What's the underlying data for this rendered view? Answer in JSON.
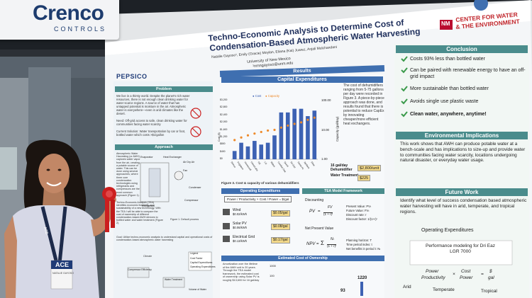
{
  "sign": {
    "brand": "Crenco",
    "sub": "CONTROLS",
    "edge": "S"
  },
  "poster": {
    "title_line1": "Techno-Economic Analysis to Determine Cost of",
    "title_line2": "Condensation-Based Atmospheric Water Harvesting",
    "authors": "Natalie Gayoso¹, Emily (Gracie) Moylan, Eliana (Kai) Juarez, Anjali Mulchandani",
    "affiliation": "University of New Mexico",
    "email": "¹nmngayoso@unm.edu",
    "sponsor": "PEPSICO",
    "center_logo": "CENTER FOR WATER",
    "center_logo2": "& THE ENVIRONMENT",
    "center_monogram": "NM",
    "sections": {
      "results": "Results",
      "problem": "Problem",
      "approach": "Approach",
      "capex": "Capital Expenditures",
      "opex": "Operating Expenditures",
      "tea": "TEA Model Framework",
      "toc": "Estimated Cost of Ownership",
      "conclusion": "Conclusion",
      "env": "Environmental Implications",
      "future": "Future Work",
      "opex2": "Operating Expenditures"
    },
    "problem_text": "We live in a thirsty world. Despite the planet's rich water resources, there is not enough clean drinking water for water scarce regions. A source of water that has untapped potential is moisture in the air. Atmospheric water is everywhere—even in arid climates like the desert.",
    "need_text": "Need: Off-grid access to safe, clean drinking water for communities facing water scarcity",
    "current_text": "Current Solution: Water transportation by car or foot, bottled water which costs >$1/gallon",
    "approach_text": "Atmospheric Water Harvesting (or AWH) captures water vapor from the air, creating a potable source of water. This can be done using several approaches, where three core condensation technologies using refrigerants and compressors are the most common approach (Figure 1).",
    "tea_text": "Techno-Economic Analysis (TEA) identifies economic feasibility and sustainability of a new technology. With the TEA I will be able to compare the cost of ownership of different condensation-based AWH devices to bottled water and water treatment (Figure 2).",
    "goal_text": "Goal: Utilize techno-economic analysis to understand capital and operational costs of condensation-based atmospheric water harvesting",
    "fig1_caption": "Figure 1. Default process",
    "fig1_labels": [
      "Evaporator",
      "Heat Exchanger",
      "Air Dry Air",
      "Fan",
      "Condenser",
      "Refrigerant",
      "Compressor"
    ],
    "approach_icons": [
      "Climate"
    ],
    "fig2_labels": [
      "Compressor Efficiency",
      "Water Treatment",
      "Volume of Water",
      "Legend",
      "Cost Factor",
      "Capital Expenditures",
      "Operating Expenditures"
    ],
    "capex_text": "The cost of dehumidifiers ranging from 5-75 gallons per day were recorded in Figure 3. A piece-by-piece approach was done, and results found that there is potential to reduce CapEx by innovating cheaper/more efficient heat exchangers.",
    "fig3_caption": "Figure 3. Cost & capacity of various dehumidifiers",
    "capex_items": [
      {
        "label": "16 gal/day Dehumidifier",
        "value": "$2,800/unit"
      },
      {
        "label": "Water Treatment",
        "value": "$225"
      }
    ],
    "opex_items": [
      {
        "label": "Wind",
        "value": "$0.02/kWh",
        "result": "$0.05/gal"
      },
      {
        "label": "Solar PV",
        "value": "$0.06/kWh",
        "result": "$0.08/gal"
      },
      {
        "label": "Electrical Grid",
        "value": "$0.13/kWh",
        "result": "$0.17/gal"
      }
    ],
    "opex_formula": {
      "power": "Power",
      "productivity": "Productivity",
      "times": "×",
      "cost": "Cost",
      "power2": "Power",
      "equals": "=",
      "dollar": "$",
      "gal": "gal"
    },
    "tea_discounting": "Discounting",
    "tea_pv_lhs": "PV",
    "tea_pv_eq": "=",
    "tea_fv": "FV",
    "tea_pv_den": "(1 + r)ᵗ",
    "tea_pv_desc": [
      "Present Value: PVₜ",
      "Future Value: FVₜ",
      "Discount rate: r",
      "Discount factor: 1/(1+r)ᵗ"
    ],
    "tea_npv_title": "Net Present Value",
    "tea_npv_lhs": "NPV",
    "tea_npv_eq": "=",
    "tea_npv_num": "Nₜ",
    "tea_npv_den": "(1 + r)ᵗ",
    "tea_npv_sum": "Σ",
    "tea_npv_desc": [
      "Planning horizon: T",
      "Time period index: t",
      "Net benefits in period t: Nₜ"
    ],
    "toc_text": "Amortization over the lifetime of the AWH unit is 20 years. Through the TEA model framework, the estimated cost of ownership using Solar PV is roughly $13,600 for 16 gal/day",
    "toc_values": [
      "1000",
      "100",
      "1220",
      "93"
    ],
    "chart_data": {
      "type": "bar",
      "title": "",
      "legend": [
        "Cost",
        "Capacity"
      ],
      "y_left_ticks": [
        "$3,200",
        "$2,800",
        "$2,400",
        "$2,000",
        "$1,600",
        "$1,200",
        "$800",
        "$400",
        "$0"
      ],
      "ylabel_left": "Cost ($)",
      "y_right_ticks": [
        "100.00",
        "10.00",
        "1.00"
      ],
      "ylabel_right": "Capacity (gal/day)",
      "series": [
        {
          "name": "Cost",
          "values": [
            450,
            900,
            700,
            1000,
            800,
            900,
            1300,
            2550,
            2550,
            2750,
            2750,
            2350,
            2650
          ]
        },
        {
          "name": "Capacity",
          "values": [
            4.5,
            5.5,
            6.5,
            7.5,
            8.5,
            9.5,
            10,
            12,
            14,
            16,
            18,
            22,
            26
          ]
        }
      ],
      "categories": [
        "Shinco",
        "Frigidaire",
        "Honeywell",
        "hOmeLabs",
        "GE",
        "LG",
        "Midea",
        "Comfort Star",
        "Quest",
        "Dri-Eaz",
        "Santa Fe",
        "Aprilaire",
        "Ebac"
      ]
    },
    "conclusion_items": [
      "Costs 93% less than bottled water",
      "Can be paired with renewable energy to have an off-grid impact",
      "More sustainable than bottled water",
      "Avoids single use plastic waste",
      "Clean water, anywhere, anytime!"
    ],
    "env_text": "This work shows that AWH can produce potable water at a bench-scale and has implications to size-up and provide water to communities facing water scarcity, locations undergoing natural disaster, or everyday water usage.",
    "future_text": "Identify what level of success condensation based atmospheric water harvesting will have in arid, temperate, and tropical regions.",
    "future_box": "Performance modeling for Dri Eaz LGR 7000",
    "future_labels": [
      "Arid",
      "Temperate",
      "Tropical"
    ]
  },
  "person": {
    "badge_brand": "ACE",
    "lanyard_text": "ACE",
    "badge_name": "NATALIE GAYOSO"
  },
  "colors": {
    "poster_bg": "#f4f6f8",
    "header_blue": "#3f6fb0",
    "teal": "#4a8c8c",
    "bar_blue": "#3d62b3",
    "cap_orange": "#ee8a2a",
    "unm_red": "#ba0c2f",
    "ribbon_red": "#cc1f1f",
    "check_green": "#3a9a4a"
  }
}
